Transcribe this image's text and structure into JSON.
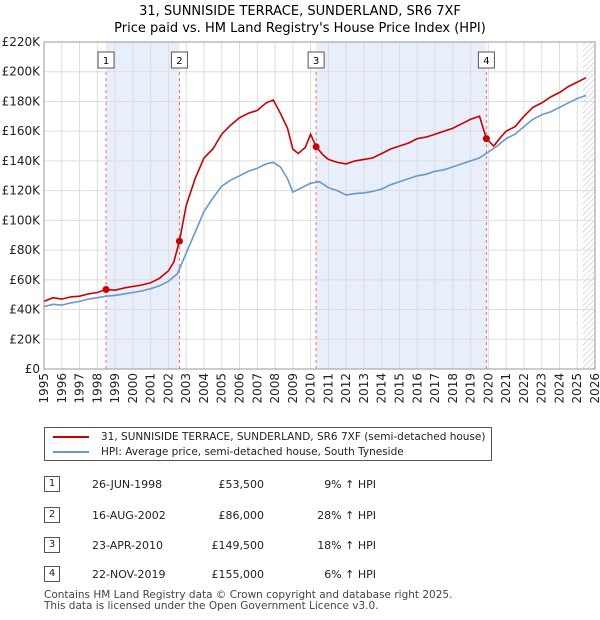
{
  "chart_data": {
    "type": "line",
    "title": "31, SUNNISIDE TERRACE, SUNDERLAND, SR6 7XF",
    "subtitle": "Price paid vs. HM Land Registry's House Price Index (HPI)",
    "xlim": [
      1995,
      2026
    ],
    "ylim": [
      0,
      220000
    ],
    "x_ticks": [
      1995,
      1996,
      1997,
      1998,
      1999,
      2000,
      2001,
      2002,
      2003,
      2004,
      2005,
      2006,
      2007,
      2008,
      2009,
      2010,
      2011,
      2012,
      2013,
      2014,
      2015,
      2016,
      2017,
      2018,
      2019,
      2020,
      2021,
      2022,
      2023,
      2024,
      2025,
      2026
    ],
    "y_ticks": [
      {
        "value": 0,
        "label": "£0"
      },
      {
        "value": 20000,
        "label": "£20K"
      },
      {
        "value": 40000,
        "label": "£40K"
      },
      {
        "value": 60000,
        "label": "£60K"
      },
      {
        "value": 80000,
        "label": "£80K"
      },
      {
        "value": 100000,
        "label": "£100K"
      },
      {
        "value": 120000,
        "label": "£120K"
      },
      {
        "value": 140000,
        "label": "£140K"
      },
      {
        "value": 160000,
        "label": "£160K"
      },
      {
        "value": 180000,
        "label": "£180K"
      },
      {
        "value": 200000,
        "label": "£200K"
      },
      {
        "value": 220000,
        "label": "£220K"
      }
    ],
    "grid": true,
    "forecast_start": 2025.3,
    "series": [
      {
        "name": "31, SUNNISIDE TERRACE, SUNDERLAND, SR6 7XF (semi-detached house)",
        "color": "#cc0000",
        "points": [
          [
            1995.0,
            45500
          ],
          [
            1995.5,
            48000
          ],
          [
            1996.0,
            47000
          ],
          [
            1996.5,
            48500
          ],
          [
            1997.0,
            49000
          ],
          [
            1997.5,
            50500
          ],
          [
            1998.0,
            51500
          ],
          [
            1998.49,
            53500
          ],
          [
            1999.0,
            53000
          ],
          [
            1999.5,
            54500
          ],
          [
            2000.0,
            55500
          ],
          [
            2000.5,
            56500
          ],
          [
            2001.0,
            58000
          ],
          [
            2001.5,
            61000
          ],
          [
            2002.0,
            66000
          ],
          [
            2002.3,
            72000
          ],
          [
            2002.62,
            86000
          ],
          [
            2003.0,
            110000
          ],
          [
            2003.5,
            128000
          ],
          [
            2004.0,
            142000
          ],
          [
            2004.5,
            148000
          ],
          [
            2005.0,
            158000
          ],
          [
            2005.5,
            164000
          ],
          [
            2006.0,
            169000
          ],
          [
            2006.5,
            172000
          ],
          [
            2007.0,
            174000
          ],
          [
            2007.5,
            179000
          ],
          [
            2007.9,
            181000
          ],
          [
            2008.3,
            172000
          ],
          [
            2008.7,
            162000
          ],
          [
            2009.0,
            148000
          ],
          [
            2009.3,
            145000
          ],
          [
            2009.7,
            149000
          ],
          [
            2010.0,
            158000
          ],
          [
            2010.31,
            149500
          ],
          [
            2010.7,
            144000
          ],
          [
            2011.0,
            141000
          ],
          [
            2011.5,
            139000
          ],
          [
            2012.0,
            138000
          ],
          [
            2012.5,
            140000
          ],
          [
            2013.0,
            141000
          ],
          [
            2013.5,
            142000
          ],
          [
            2014.0,
            145000
          ],
          [
            2014.5,
            148000
          ],
          [
            2015.0,
            150000
          ],
          [
            2015.5,
            152000
          ],
          [
            2016.0,
            155000
          ],
          [
            2016.5,
            156000
          ],
          [
            2017.0,
            158000
          ],
          [
            2017.5,
            160000
          ],
          [
            2018.0,
            162000
          ],
          [
            2018.5,
            165000
          ],
          [
            2019.0,
            168000
          ],
          [
            2019.5,
            170000
          ],
          [
            2019.89,
            155000
          ],
          [
            2020.3,
            150000
          ],
          [
            2020.7,
            156000
          ],
          [
            2021.0,
            160000
          ],
          [
            2021.5,
            163000
          ],
          [
            2022.0,
            170000
          ],
          [
            2022.5,
            176000
          ],
          [
            2023.0,
            179000
          ],
          [
            2023.5,
            183000
          ],
          [
            2024.0,
            186000
          ],
          [
            2024.5,
            190000
          ],
          [
            2025.0,
            193000
          ],
          [
            2025.5,
            196000
          ]
        ]
      },
      {
        "name": "HPI: Average price, semi-detached house, South Tyneside",
        "color": "#6699cc",
        "points": [
          [
            1995.0,
            42000
          ],
          [
            1995.5,
            43500
          ],
          [
            1996.0,
            43000
          ],
          [
            1996.5,
            44500
          ],
          [
            1997.0,
            45500
          ],
          [
            1997.5,
            47000
          ],
          [
            1998.0,
            48000
          ],
          [
            1998.5,
            49000
          ],
          [
            1999.0,
            49500
          ],
          [
            1999.5,
            50500
          ],
          [
            2000.0,
            51500
          ],
          [
            2000.5,
            52500
          ],
          [
            2001.0,
            54000
          ],
          [
            2001.5,
            56000
          ],
          [
            2002.0,
            59000
          ],
          [
            2002.5,
            64000
          ],
          [
            2003.0,
            78000
          ],
          [
            2003.5,
            92000
          ],
          [
            2004.0,
            106000
          ],
          [
            2004.5,
            115000
          ],
          [
            2005.0,
            123000
          ],
          [
            2005.5,
            127000
          ],
          [
            2006.0,
            130000
          ],
          [
            2006.5,
            133000
          ],
          [
            2007.0,
            135000
          ],
          [
            2007.5,
            138000
          ],
          [
            2007.9,
            139000
          ],
          [
            2008.3,
            136000
          ],
          [
            2008.7,
            128000
          ],
          [
            2009.0,
            119000
          ],
          [
            2009.5,
            122000
          ],
          [
            2010.0,
            125000
          ],
          [
            2010.5,
            126000
          ],
          [
            2011.0,
            122000
          ],
          [
            2011.5,
            120000
          ],
          [
            2012.0,
            117000
          ],
          [
            2012.5,
            118000
          ],
          [
            2013.0,
            118500
          ],
          [
            2013.5,
            119500
          ],
          [
            2014.0,
            121000
          ],
          [
            2014.5,
            124000
          ],
          [
            2015.0,
            126000
          ],
          [
            2015.5,
            128000
          ],
          [
            2016.0,
            130000
          ],
          [
            2016.5,
            131000
          ],
          [
            2017.0,
            133000
          ],
          [
            2017.5,
            134000
          ],
          [
            2018.0,
            136000
          ],
          [
            2018.5,
            138000
          ],
          [
            2019.0,
            140000
          ],
          [
            2019.5,
            142000
          ],
          [
            2020.0,
            146000
          ],
          [
            2020.5,
            150000
          ],
          [
            2021.0,
            155000
          ],
          [
            2021.5,
            158000
          ],
          [
            2022.0,
            163000
          ],
          [
            2022.5,
            168000
          ],
          [
            2023.0,
            171000
          ],
          [
            2023.5,
            173000
          ],
          [
            2024.0,
            176000
          ],
          [
            2024.5,
            179000
          ],
          [
            2025.0,
            182000
          ],
          [
            2025.5,
            184000
          ]
        ]
      }
    ],
    "transactions": [
      {
        "num": "1",
        "x": 1998.49,
        "price_value": 53500,
        "date": "26-JUN-1998",
        "price": "£53,500",
        "hpi": "9% ↑ HPI"
      },
      {
        "num": "2",
        "x": 2002.62,
        "price_value": 86000,
        "date": "16-AUG-2002",
        "price": "£86,000",
        "hpi": "28% ↑ HPI"
      },
      {
        "num": "3",
        "x": 2010.31,
        "price_value": 149500,
        "date": "23-APR-2010",
        "price": "£149,500",
        "hpi": "18% ↑ HPI"
      },
      {
        "num": "4",
        "x": 2019.89,
        "price_value": 155000,
        "date": "22-NOV-2019",
        "price": "£155,000",
        "hpi": "6% ↑ HPI"
      }
    ]
  },
  "legend": {
    "property_label": "31, SUNNISIDE TERRACE, SUNDERLAND, SR6 7XF (semi-detached house)",
    "hpi_label": "HPI: Average price, semi-detached house, South Tyneside"
  },
  "footer": {
    "line1": "Contains HM Land Registry data © Crown copyright and database right 2025.",
    "line2": "This data is licensed under the Open Government Licence v3.0."
  }
}
